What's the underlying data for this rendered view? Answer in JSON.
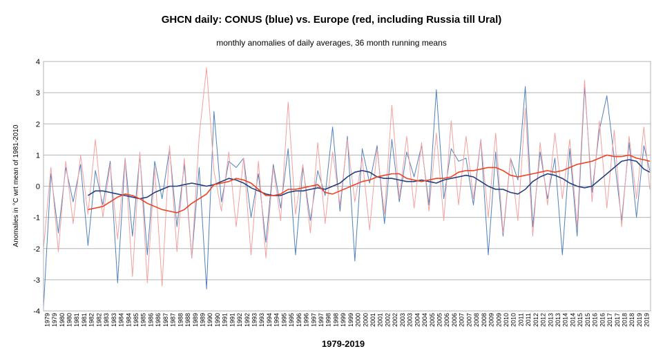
{
  "chart_data": {
    "type": "line",
    "title": "GHCN daily: CONUS (blue) vs. Europe (red, including Russia till Ural)",
    "subtitle": "monthly anomalies of daily averages, 36 month running means",
    "xlabel": "1979-2019",
    "ylabel": "Anomalies in °C wrt mean of 1981-2010",
    "ylim": [
      -4,
      4
    ],
    "yticks": [
      "-4",
      "-3",
      "-2",
      "-1",
      "0",
      "1",
      "2",
      "3",
      "4"
    ],
    "xlim": [
      1979,
      2019.95
    ],
    "x_tick_labels": [
      "1979",
      "1979",
      "1980",
      "1980",
      "1981",
      "1981",
      "1982",
      "1982",
      "1983",
      "1983",
      "1984",
      "1984",
      "1985",
      "1985",
      "1986",
      "1986",
      "1987",
      "1987",
      "1988",
      "1988",
      "1989",
      "1989",
      "1990",
      "1990",
      "1991",
      "1991",
      "1992",
      "1992",
      "1993",
      "1993",
      "1994",
      "1994",
      "1995",
      "1995",
      "1996",
      "1996",
      "1997",
      "1997",
      "1998",
      "1998",
      "1999",
      "1999",
      "2000",
      "2000",
      "2001",
      "2001",
      "2002",
      "2002",
      "2003",
      "2003",
      "2004",
      "2004",
      "2005",
      "2005",
      "2006",
      "2006",
      "2007",
      "2007",
      "2008",
      "2008",
      "2009",
      "2009",
      "2010",
      "2010",
      "2011",
      "2011",
      "2012",
      "2012",
      "2013",
      "2013",
      "2014",
      "2014",
      "2015",
      "2015",
      "2016",
      "2016",
      "2017",
      "2017",
      "2018",
      "2018",
      "2019",
      "2019"
    ],
    "grid": true,
    "legend": "none",
    "series": [
      {
        "color": "#4f81bd",
        "style": "monthly",
        "x": [
          1979.0,
          1979.5,
          1980.0,
          1980.5,
          1981.0,
          1981.5,
          1982.0,
          1982.5,
          1983.0,
          1983.5,
          1984.0,
          1984.5,
          1985.0,
          1985.5,
          1986.0,
          1986.5,
          1987.0,
          1987.5,
          1988.0,
          1988.5,
          1989.0,
          1989.5,
          1990.0,
          1990.5,
          1991.0,
          1991.5,
          1992.0,
          1992.5,
          1993.0,
          1993.5,
          1994.0,
          1994.5,
          1995.0,
          1995.5,
          1996.0,
          1996.5,
          1997.0,
          1997.5,
          1998.0,
          1998.5,
          1999.0,
          1999.5,
          2000.0,
          2000.5,
          2001.0,
          2001.5,
          2002.0,
          2002.5,
          2003.0,
          2003.5,
          2004.0,
          2004.5,
          2005.0,
          2005.5,
          2006.0,
          2006.5,
          2007.0,
          2007.5,
          2008.0,
          2008.5,
          2009.0,
          2009.5,
          2010.0,
          2010.5,
          2011.0,
          2011.5,
          2012.0,
          2012.5,
          2013.0,
          2013.5,
          2014.0,
          2014.5,
          2015.0,
          2015.5,
          2016.0,
          2016.5,
          2017.0,
          2017.5,
          2018.0,
          2018.5,
          2019.0,
          2019.5,
          2019.9
        ],
        "y": [
          -3.9,
          0.4,
          -1.5,
          0.6,
          -0.5,
          0.7,
          -1.9,
          0.5,
          -0.6,
          0.8,
          -3.1,
          0.9,
          -1.6,
          1.0,
          -2.2,
          0.8,
          -0.4,
          1.2,
          -1.3,
          0.7,
          -2.3,
          0.6,
          -3.3,
          2.4,
          -0.5,
          0.8,
          0.6,
          0.9,
          -1.0,
          0.4,
          -1.8,
          0.7,
          -0.7,
          1.2,
          -2.2,
          0.6,
          -1.1,
          0.5,
          -0.3,
          1.9,
          -0.8,
          1.6,
          -2.4,
          1.2,
          0.1,
          1.3,
          -1.2,
          1.5,
          -0.5,
          1.1,
          0.3,
          1.3,
          -0.6,
          3.1,
          -0.4,
          1.2,
          0.8,
          0.9,
          -0.6,
          1.5,
          -2.2,
          1.1,
          -1.6,
          0.9,
          0.2,
          3.2,
          -1.3,
          1.1,
          -0.4,
          0.9,
          -2.2,
          1.2,
          -1.6,
          3.2,
          -0.2,
          1.8,
          2.9,
          0.9,
          -1.1,
          1.4,
          -1.0,
          1.3,
          0.5
        ]
      },
      {
        "color": "#f4a0a0",
        "style": "monthly",
        "x": [
          1979.0,
          1979.5,
          1980.0,
          1980.5,
          1981.0,
          1981.5,
          1982.0,
          1982.5,
          1983.0,
          1983.5,
          1984.0,
          1984.5,
          1985.0,
          1985.5,
          1986.0,
          1986.5,
          1987.0,
          1987.5,
          1988.0,
          1988.5,
          1989.0,
          1989.5,
          1990.0,
          1990.5,
          1991.0,
          1991.5,
          1992.0,
          1992.5,
          1993.0,
          1993.5,
          1994.0,
          1994.5,
          1995.0,
          1995.5,
          1996.0,
          1996.5,
          1997.0,
          1997.5,
          1998.0,
          1998.5,
          1999.0,
          1999.5,
          2000.0,
          2000.5,
          2001.0,
          2001.5,
          2002.0,
          2002.5,
          2003.0,
          2003.5,
          2004.0,
          2004.5,
          2005.0,
          2005.5,
          2006.0,
          2006.5,
          2007.0,
          2007.5,
          2008.0,
          2008.5,
          2009.0,
          2009.5,
          2010.0,
          2010.5,
          2011.0,
          2011.5,
          2012.0,
          2012.5,
          2013.0,
          2013.5,
          2014.0,
          2014.5,
          2015.0,
          2015.5,
          2016.0,
          2016.5,
          2017.0,
          2017.5,
          2018.0,
          2018.5,
          2019.0,
          2019.5,
          2019.9
        ],
        "y": [
          -2.0,
          0.6,
          -2.1,
          0.8,
          -1.2,
          1.0,
          -0.9,
          1.5,
          -1.0,
          0.7,
          -1.7,
          0.9,
          -2.9,
          1.1,
          -3.1,
          0.6,
          -3.2,
          1.3,
          -2.1,
          0.9,
          -2.3,
          1.6,
          3.8,
          0.5,
          -0.8,
          1.1,
          -1.3,
          0.9,
          -2.2,
          0.8,
          -2.3,
          0.6,
          -1.1,
          2.7,
          -0.9,
          0.7,
          -1.5,
          1.4,
          -1.2,
          1.1,
          -0.6,
          1.5,
          -0.5,
          0.9,
          -1.4,
          1.2,
          -0.9,
          2.6,
          -0.4,
          1.6,
          -0.7,
          1.4,
          -0.8,
          1.7,
          -1.1,
          2.1,
          -0.6,
          1.6,
          -0.4,
          1.5,
          -1.0,
          1.7,
          -1.5,
          0.9,
          -1.1,
          2.5,
          -1.6,
          1.4,
          -0.6,
          1.7,
          -0.4,
          1.5,
          -1.3,
          3.4,
          -0.5,
          2.1,
          -0.7,
          1.8,
          -1.3,
          1.6,
          -0.4,
          1.9,
          -0.1
        ]
      },
      {
        "color": "#1f3f7f",
        "style": "running-mean",
        "x": [
          1982.0,
          1982.5,
          1983.0,
          1983.5,
          1984.0,
          1984.5,
          1985.0,
          1985.5,
          1986.0,
          1986.5,
          1987.0,
          1987.5,
          1988.0,
          1988.5,
          1989.0,
          1989.5,
          1990.0,
          1990.5,
          1991.0,
          1991.5,
          1992.0,
          1992.5,
          1993.0,
          1993.5,
          1994.0,
          1994.5,
          1995.0,
          1995.5,
          1996.0,
          1996.5,
          1997.0,
          1997.5,
          1998.0,
          1998.5,
          1999.0,
          1999.5,
          2000.0,
          2000.5,
          2001.0,
          2001.5,
          2002.0,
          2002.5,
          2003.0,
          2003.5,
          2004.0,
          2004.5,
          2005.0,
          2005.5,
          2006.0,
          2006.5,
          2007.0,
          2007.5,
          2008.0,
          2008.5,
          2009.0,
          2009.5,
          2010.0,
          2010.5,
          2011.0,
          2011.5,
          2012.0,
          2012.5,
          2013.0,
          2013.5,
          2014.0,
          2014.5,
          2015.0,
          2015.5,
          2016.0,
          2016.5,
          2017.0,
          2017.5,
          2018.0,
          2018.5,
          2019.0,
          2019.5,
          2019.9
        ],
        "y": [
          -0.3,
          -0.15,
          -0.15,
          -0.2,
          -0.25,
          -0.3,
          -0.35,
          -0.4,
          -0.35,
          -0.2,
          -0.1,
          0.0,
          0.0,
          0.05,
          0.1,
          0.05,
          0.0,
          0.05,
          0.15,
          0.25,
          0.2,
          0.1,
          -0.05,
          -0.15,
          -0.25,
          -0.3,
          -0.3,
          -0.2,
          -0.15,
          -0.15,
          -0.1,
          -0.05,
          -0.1,
          0.0,
          0.1,
          0.3,
          0.45,
          0.5,
          0.45,
          0.3,
          0.25,
          0.25,
          0.2,
          0.15,
          0.15,
          0.2,
          0.15,
          0.1,
          0.2,
          0.25,
          0.3,
          0.35,
          0.3,
          0.15,
          0.0,
          -0.1,
          -0.1,
          -0.2,
          -0.25,
          -0.1,
          0.15,
          0.3,
          0.4,
          0.35,
          0.25,
          0.1,
          0.0,
          -0.05,
          0.0,
          0.2,
          0.4,
          0.6,
          0.8,
          0.85,
          0.8,
          0.55,
          0.45
        ]
      },
      {
        "color": "#f04020",
        "style": "running-mean",
        "x": [
          1982.0,
          1982.5,
          1983.0,
          1983.5,
          1984.0,
          1984.5,
          1985.0,
          1985.5,
          1986.0,
          1986.5,
          1987.0,
          1987.5,
          1988.0,
          1988.5,
          1989.0,
          1989.5,
          1990.0,
          1990.5,
          1991.0,
          1991.5,
          1992.0,
          1992.5,
          1993.0,
          1993.5,
          1994.0,
          1994.5,
          1995.0,
          1995.5,
          1996.0,
          1996.5,
          1997.0,
          1997.5,
          1998.0,
          1998.5,
          1999.0,
          1999.5,
          2000.0,
          2000.5,
          2001.0,
          2001.5,
          2002.0,
          2002.5,
          2003.0,
          2003.5,
          2004.0,
          2004.5,
          2005.0,
          2005.5,
          2006.0,
          2006.5,
          2007.0,
          2007.5,
          2008.0,
          2008.5,
          2009.0,
          2009.5,
          2010.0,
          2010.5,
          2011.0,
          2011.5,
          2012.0,
          2012.5,
          2013.0,
          2013.5,
          2014.0,
          2014.5,
          2015.0,
          2015.5,
          2016.0,
          2016.5,
          2017.0,
          2017.5,
          2018.0,
          2018.5,
          2019.0,
          2019.5,
          2019.9
        ],
        "y": [
          -0.75,
          -0.7,
          -0.65,
          -0.5,
          -0.35,
          -0.25,
          -0.3,
          -0.4,
          -0.55,
          -0.65,
          -0.75,
          -0.8,
          -0.85,
          -0.75,
          -0.55,
          -0.4,
          -0.25,
          0.05,
          0.1,
          0.15,
          0.25,
          0.2,
          0.1,
          -0.1,
          -0.3,
          -0.3,
          -0.25,
          -0.1,
          -0.1,
          -0.05,
          0.0,
          0.05,
          -0.2,
          -0.25,
          -0.15,
          -0.05,
          0.05,
          0.15,
          0.2,
          0.3,
          0.35,
          0.4,
          0.4,
          0.25,
          0.2,
          0.15,
          0.2,
          0.25,
          0.25,
          0.3,
          0.45,
          0.5,
          0.5,
          0.55,
          0.6,
          0.6,
          0.5,
          0.35,
          0.3,
          0.35,
          0.4,
          0.45,
          0.5,
          0.45,
          0.5,
          0.6,
          0.7,
          0.75,
          0.8,
          0.9,
          1.0,
          0.95,
          0.95,
          1.0,
          0.9,
          0.85,
          0.8
        ]
      }
    ]
  }
}
